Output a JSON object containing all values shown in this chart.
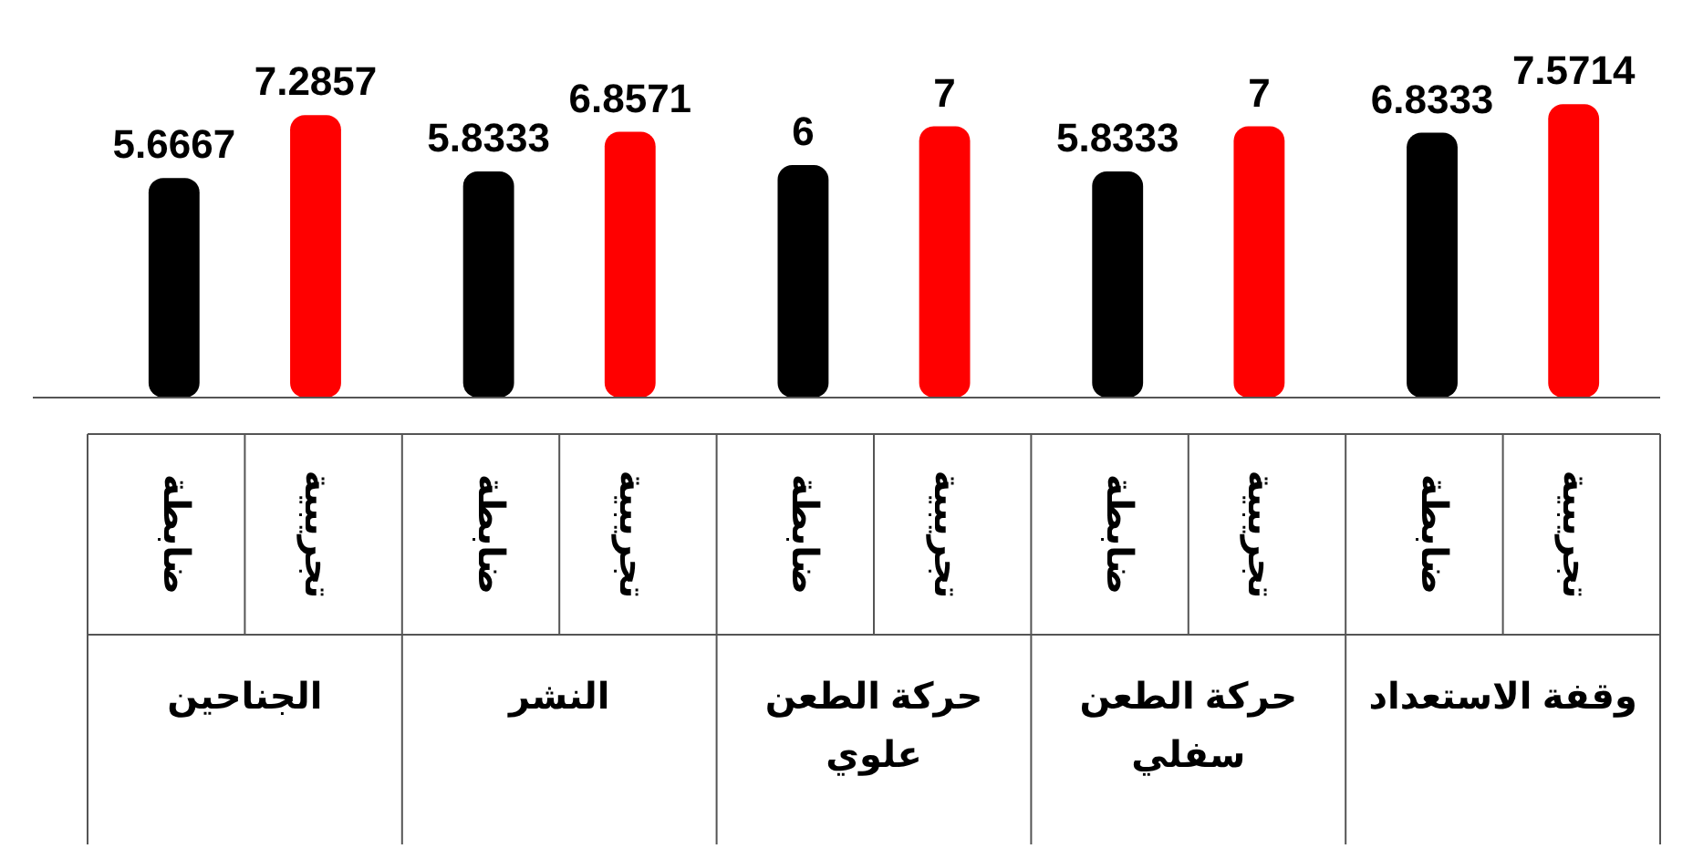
{
  "chart_data": {
    "type": "bar",
    "categories": [
      "الجناحين",
      "النشر",
      "حركة الطعن علوي",
      "حركة الطعن سفلي",
      "وقفة الاستعداد"
    ],
    "data_labels": true,
    "legend": false,
    "series": [
      {
        "name": "ضابطة",
        "color": "#000000",
        "values": [
          5.6667,
          5.8333,
          6,
          5.8333,
          6.8333
        ]
      },
      {
        "name": "تجريبية",
        "color": "#ff0000",
        "values": [
          7.2857,
          6.8571,
          7,
          7,
          7.5714
        ]
      }
    ]
  }
}
